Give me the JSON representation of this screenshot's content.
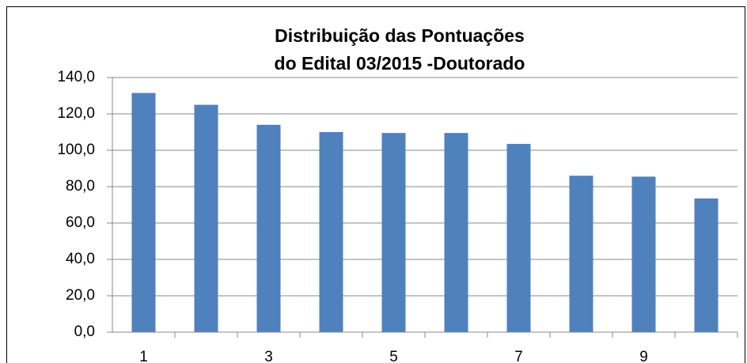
{
  "chart_data": {
    "type": "bar",
    "title": [
      "Distribuição das Pontuações",
      "do Edital 03/2015 -Doutorado"
    ],
    "categories": [
      "1",
      null,
      "3",
      null,
      "5",
      null,
      "7",
      null,
      "9",
      null
    ],
    "values": [
      131.5,
      125,
      114,
      110,
      109.5,
      109.5,
      103.5,
      86,
      85.5,
      73.5
    ],
    "color": "#4f81bd",
    "ylim": [
      0,
      140
    ],
    "yticks": [
      {
        "value": 0,
        "label": "0,0"
      },
      {
        "value": 20,
        "label": "20,0"
      },
      {
        "value": 40,
        "label": "40,0"
      },
      {
        "value": 60,
        "label": "60,0"
      },
      {
        "value": 80,
        "label": "80,0"
      },
      {
        "value": 100,
        "label": "100,0"
      },
      {
        "value": 120,
        "label": "120,0"
      },
      {
        "value": 140,
        "label": "140,0"
      }
    ],
    "grid": true
  }
}
